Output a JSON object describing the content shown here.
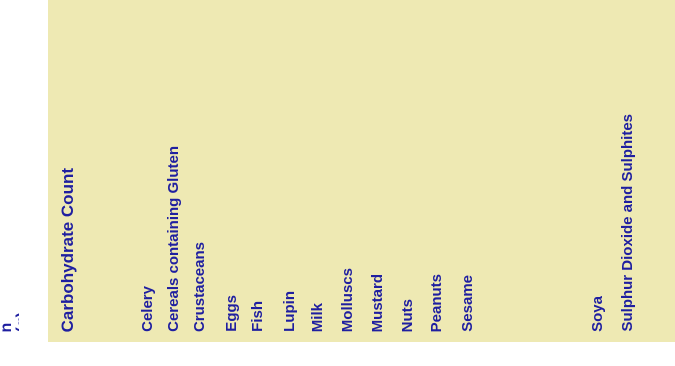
{
  "partial_header": "n\n(g)",
  "columns": {
    "carb_header": "Carbohydrate Count",
    "allergens": [
      "Celery",
      "Cereals containing Gluten",
      "Crustaceans",
      "Eggs",
      "Fish",
      "Lupin",
      "Milk",
      "Molluscs",
      "Mustard",
      "Nuts",
      "Peanuts",
      "Sesame",
      "Soya",
      "Sulphur Dioxide and Sulphites"
    ]
  },
  "colors": {
    "panel_bg": "#eee9b3",
    "text": "#1f1fa0"
  }
}
